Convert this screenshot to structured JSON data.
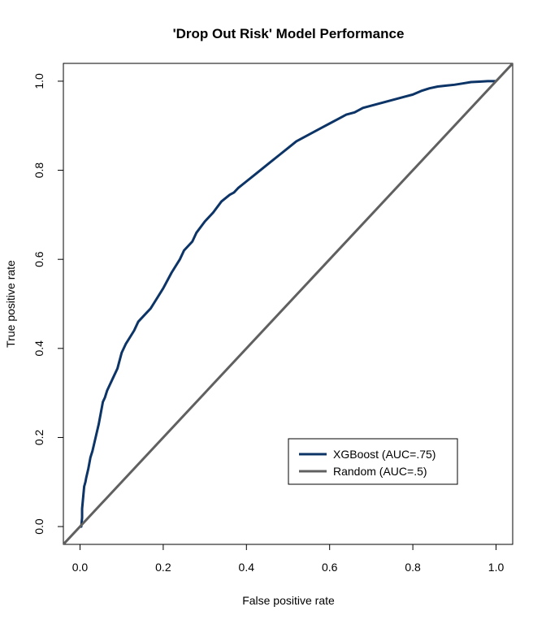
{
  "chart_data": {
    "type": "line",
    "title": "'Drop Out Risk' Model Performance",
    "xlabel": "False positive rate",
    "ylabel": "True positive rate",
    "xlim": [
      -0.04,
      1.04
    ],
    "ylim": [
      -0.04,
      1.04
    ],
    "xticks": [
      0.0,
      0.2,
      0.4,
      0.6,
      0.8,
      1.0
    ],
    "xtick_labels": [
      "0.0",
      "0.2",
      "0.4",
      "0.6",
      "0.8",
      "1.0"
    ],
    "yticks": [
      0.0,
      0.2,
      0.4,
      0.6,
      0.8,
      1.0
    ],
    "ytick_labels": [
      "0.0",
      "0.2",
      "0.4",
      "0.6",
      "0.8",
      "1.0"
    ],
    "grid": false,
    "legend_position": "bottom-right",
    "series": [
      {
        "name": "XGBoost (AUC=.75)",
        "color": "#0c3466",
        "x": [
          0.0,
          0.003,
          0.005,
          0.005,
          0.008,
          0.01,
          0.013,
          0.015,
          0.02,
          0.025,
          0.03,
          0.035,
          0.04,
          0.045,
          0.05,
          0.055,
          0.06,
          0.065,
          0.07,
          0.08,
          0.09,
          0.1,
          0.11,
          0.12,
          0.13,
          0.14,
          0.15,
          0.16,
          0.17,
          0.18,
          0.2,
          0.22,
          0.24,
          0.25,
          0.27,
          0.28,
          0.3,
          0.32,
          0.34,
          0.36,
          0.37,
          0.38,
          0.4,
          0.42,
          0.44,
          0.46,
          0.48,
          0.5,
          0.52,
          0.54,
          0.56,
          0.58,
          0.6,
          0.62,
          0.64,
          0.66,
          0.68,
          0.7,
          0.72,
          0.74,
          0.76,
          0.78,
          0.8,
          0.82,
          0.84,
          0.86,
          0.88,
          0.9,
          0.92,
          0.94,
          0.96,
          0.98,
          0.99,
          1.0
        ],
        "y": [
          0.0,
          0.0,
          0.02,
          0.04,
          0.07,
          0.09,
          0.1,
          0.11,
          0.13,
          0.155,
          0.17,
          0.19,
          0.21,
          0.23,
          0.255,
          0.28,
          0.29,
          0.305,
          0.315,
          0.335,
          0.355,
          0.39,
          0.41,
          0.425,
          0.44,
          0.46,
          0.47,
          0.48,
          0.49,
          0.505,
          0.535,
          0.57,
          0.6,
          0.62,
          0.64,
          0.66,
          0.685,
          0.705,
          0.73,
          0.745,
          0.75,
          0.76,
          0.775,
          0.79,
          0.805,
          0.82,
          0.835,
          0.85,
          0.865,
          0.875,
          0.885,
          0.895,
          0.905,
          0.915,
          0.925,
          0.93,
          0.94,
          0.945,
          0.95,
          0.955,
          0.96,
          0.965,
          0.97,
          0.978,
          0.984,
          0.988,
          0.99,
          0.992,
          0.995,
          0.998,
          0.999,
          1.0,
          1.0,
          1.0
        ]
      },
      {
        "name": "Random (AUC=.5)",
        "color": "#606060",
        "x": [
          -0.04,
          1.04
        ],
        "y": [
          -0.04,
          1.04
        ]
      }
    ]
  }
}
